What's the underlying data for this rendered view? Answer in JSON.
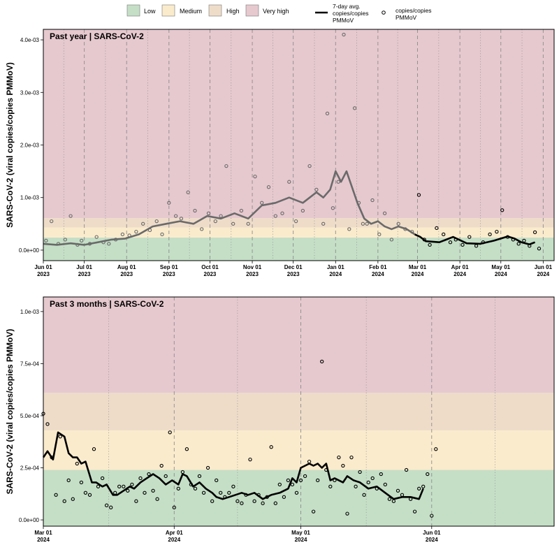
{
  "legend": {
    "levels": [
      {
        "label": "Low",
        "color": "#c5dfc6"
      },
      {
        "label": "Medium",
        "color": "#faebcc"
      },
      {
        "label": "High",
        "color": "#eedcc9"
      },
      {
        "label": "Very high",
        "color": "#e6c9cf"
      }
    ],
    "line_label": [
      "7-day avg.",
      "copies/copies",
      "PMMoV"
    ],
    "point_label": [
      "copies/copies",
      "PMMoV"
    ]
  },
  "chart_data": [
    {
      "type": "line",
      "title": "Past year  |  SARS-CoV-2",
      "ylabel": "SARS-CoV-2 (viral copies/copies PMMoV)",
      "xlabel": "",
      "ylim": [
        -0.0002,
        0.0042
      ],
      "yticks": [
        0,
        0.001,
        0.002,
        0.003,
        0.004
      ],
      "ytick_labels": [
        "0.0e+00",
        "1.0e-03",
        "2.0e-03",
        "3.0e-03",
        "4.0e-03"
      ],
      "xlim": [
        0,
        374
      ],
      "xticks": [
        {
          "day": 0,
          "label": [
            "Jun 01",
            "2023"
          ]
        },
        {
          "day": 30,
          "label": [
            "Jul 01",
            "2023"
          ]
        },
        {
          "day": 61,
          "label": [
            "Aug 01",
            "2023"
          ]
        },
        {
          "day": 92,
          "label": [
            "Sep 01",
            "2023"
          ]
        },
        {
          "day": 122,
          "label": [
            "Oct 01",
            "2023"
          ]
        },
        {
          "day": 153,
          "label": [
            "Nov 01",
            "2023"
          ]
        },
        {
          "day": 183,
          "label": [
            "Dec 01",
            "2023"
          ]
        },
        {
          "day": 214,
          "label": [
            "Jan 01",
            "2024"
          ]
        },
        {
          "day": 245,
          "label": [
            "Feb 01",
            "2024"
          ]
        },
        {
          "day": 274,
          "label": [
            "Mar 01",
            "2024"
          ]
        },
        {
          "day": 305,
          "label": [
            "Apr 01",
            "2024"
          ]
        },
        {
          "day": 335,
          "label": [
            "May 01",
            "2024"
          ]
        },
        {
          "day": 366,
          "label": [
            "Jun 01",
            "2024"
          ]
        }
      ],
      "bands": [
        {
          "level": "Low",
          "from": -0.0002,
          "to": 0.00024
        },
        {
          "level": "Medium",
          "from": 0.00024,
          "to": 0.00043
        },
        {
          "level": "High",
          "from": 0.00043,
          "to": 0.00061
        },
        {
          "level": "Very high",
          "from": 0.00061,
          "to": 0.0042
        }
      ],
      "highlight_from_day": 274,
      "series_avg": {
        "name": "7-day avg. copies/copies PMMoV",
        "x": [
          0,
          10,
          20,
          30,
          40,
          50,
          60,
          70,
          80,
          90,
          100,
          110,
          120,
          130,
          140,
          150,
          160,
          170,
          180,
          190,
          200,
          205,
          210,
          214,
          218,
          222,
          226,
          230,
          235,
          240,
          245,
          250,
          255,
          260,
          266,
          272,
          276,
          280,
          290,
          300,
          310,
          320,
          330,
          340,
          345,
          350,
          356,
          360
        ],
        "y": [
          0.00012,
          0.0001,
          0.00013,
          0.0001,
          0.00015,
          0.0002,
          0.00022,
          0.0003,
          0.00045,
          0.0005,
          0.00055,
          0.0005,
          0.00065,
          0.0006,
          0.0007,
          0.0006,
          0.00085,
          0.0009,
          0.001,
          0.0009,
          0.0011,
          0.001,
          0.00115,
          0.0015,
          0.0013,
          0.0015,
          0.0012,
          0.0009,
          0.0006,
          0.0005,
          0.00055,
          0.00045,
          0.0004,
          0.00045,
          0.0004,
          0.0003,
          0.00025,
          0.00017,
          0.00015,
          0.00025,
          0.00013,
          0.00012,
          0.00018,
          0.00026,
          0.00022,
          0.00015,
          0.00011,
          0.00015
        ]
      },
      "series_points": {
        "name": "copies/copies PMMoV",
        "x": [
          2,
          6,
          11,
          16,
          20,
          25,
          28,
          34,
          39,
          44,
          48,
          53,
          58,
          63,
          68,
          73,
          78,
          83,
          87,
          92,
          97,
          101,
          106,
          111,
          116,
          121,
          126,
          130,
          134,
          139,
          145,
          150,
          155,
          160,
          165,
          170,
          175,
          180,
          185,
          190,
          195,
          200,
          205,
          208,
          212,
          216,
          220,
          224,
          228,
          231,
          234,
          237,
          241,
          246,
          250,
          255,
          260,
          265,
          270,
          275,
          279,
          283,
          288,
          293,
          298,
          302,
          307,
          312,
          317,
          322,
          327,
          332,
          336,
          340,
          344,
          348,
          352,
          356,
          360,
          363
        ],
        "y": [
          0.00018,
          0.00055,
          0.00012,
          0.0002,
          0.00065,
          0.0001,
          0.00018,
          0.00012,
          0.00025,
          0.00015,
          0.00012,
          0.0002,
          0.0003,
          0.00028,
          0.00035,
          0.0005,
          0.00038,
          0.00055,
          0.0003,
          0.0009,
          0.00065,
          0.0006,
          0.0011,
          0.00075,
          0.0004,
          0.0007,
          0.00055,
          0.00065,
          0.0016,
          0.0005,
          0.00075,
          0.0005,
          0.0014,
          0.0009,
          0.0012,
          0.00065,
          0.0007,
          0.0013,
          0.00055,
          0.00075,
          0.0016,
          0.00115,
          0.0005,
          0.0026,
          0.0008,
          0.0013,
          0.0041,
          0.0004,
          0.0027,
          0.0009,
          0.0005,
          0.0005,
          0.00095,
          0.0003,
          0.0007,
          0.0002,
          0.0005,
          0.0004,
          0.00035,
          0.00105,
          0.0002,
          0.0001,
          0.00042,
          0.0003,
          0.00015,
          0.0002,
          0.0001,
          0.00025,
          8e-05,
          0.00015,
          0.0003,
          0.00035,
          0.00076,
          0.00025,
          0.0002,
          0.00012,
          0.00018,
          8e-05,
          0.00034,
          3e-05
        ]
      }
    },
    {
      "type": "line",
      "title": "Past 3 months  |  SARS-CoV-2",
      "ylabel": "SARS-CoV-2 (viral copies/copies PMMoV)",
      "xlabel": "",
      "ylim": [
        -3e-05,
        0.00107
      ],
      "yticks": [
        0,
        0.00025,
        0.0005,
        0.00075,
        0.001
      ],
      "ytick_labels": [
        "0.0e+00",
        "2.5e-04",
        "5.0e-04",
        "7.5e-04",
        "1.0e-03"
      ],
      "xlim": [
        0,
        121
      ],
      "xticks": [
        {
          "day": 0,
          "label": [
            "Mar 01",
            "2024"
          ]
        },
        {
          "day": 31,
          "label": [
            "Apr 01",
            "2024"
          ]
        },
        {
          "day": 61,
          "label": [
            "May 01",
            "2024"
          ]
        },
        {
          "day": 92,
          "label": [
            "Jun 01",
            "2024"
          ]
        }
      ],
      "bands": [
        {
          "level": "Low",
          "from": -3e-05,
          "to": 0.00024
        },
        {
          "level": "Medium",
          "from": 0.00024,
          "to": 0.00043
        },
        {
          "level": "High",
          "from": 0.00043,
          "to": 0.00061
        },
        {
          "level": "Very high",
          "from": 0.00061,
          "to": 0.00107
        }
      ],
      "highlight_from_day": 0,
      "series_avg": {
        "name": "7-day avg. copies/copies PMMoV",
        "x": [
          0,
          1,
          2.3,
          3.5,
          5,
          6,
          7,
          8,
          9,
          10,
          11.5,
          12.5,
          14,
          15,
          16.5,
          17.5,
          19,
          20.5,
          21.5,
          23,
          24.5,
          26,
          27.5,
          29,
          30.5,
          32,
          33,
          34,
          35.5,
          37,
          38.5,
          40,
          41,
          42.5,
          44,
          45.5,
          47,
          48.5,
          50,
          52,
          54,
          56,
          58,
          59,
          60,
          61,
          62,
          63,
          64,
          65,
          66,
          67,
          68,
          69,
          70,
          71,
          72,
          73.5,
          75,
          77,
          79,
          81,
          83,
          85,
          87,
          89,
          90
        ],
        "y": [
          0.0003,
          0.00033,
          0.00029,
          0.00042,
          0.0004,
          0.00032,
          0.0003,
          0.0003,
          0.00027,
          0.00028,
          0.00018,
          0.00018,
          0.00016,
          0.00017,
          0.00012,
          0.00012,
          0.00014,
          0.00016,
          0.00015,
          0.00018,
          0.0002,
          0.00022,
          0.0002,
          0.00017,
          0.00019,
          0.00017,
          0.00022,
          0.00021,
          0.00016,
          0.00018,
          0.00015,
          0.00013,
          0.00011,
          0.0001,
          0.00011,
          0.00012,
          0.00013,
          0.00012,
          0.00013,
          0.0001,
          0.00012,
          0.00013,
          0.00015,
          0.0002,
          0.00018,
          0.00025,
          0.00026,
          0.00027,
          0.00026,
          0.00027,
          0.00025,
          0.00027,
          0.00019,
          0.0002,
          0.00019,
          0.00018,
          0.00021,
          0.00019,
          0.00018,
          0.00015,
          0.00016,
          0.00013,
          0.0001,
          0.00011,
          0.00011,
          0.0001,
          0.00015
        ]
      },
      "series_points": {
        "name": "copies/copies PMMoV",
        "x": [
          0,
          1,
          2,
          3,
          4,
          5,
          6,
          7,
          8,
          9,
          10,
          11,
          12,
          13,
          14,
          15,
          16,
          17,
          18,
          19,
          20,
          21,
          22,
          23,
          24,
          25,
          26,
          27,
          28,
          29,
          30,
          31,
          32,
          33,
          34,
          35,
          36,
          37,
          38,
          39,
          40,
          41,
          42,
          43,
          44,
          45,
          46,
          47,
          48,
          49,
          50,
          51,
          52,
          53,
          54,
          55,
          56,
          57,
          58,
          59,
          60,
          61,
          62,
          63,
          64,
          65,
          66,
          67,
          68,
          69,
          70,
          71,
          72,
          73,
          74,
          75,
          76,
          77,
          78,
          79,
          80,
          81,
          82,
          83,
          84,
          85,
          86,
          87,
          88,
          89,
          90,
          91,
          92,
          93
        ],
        "y": [
          0.00051,
          0.00046,
          0.0003,
          0.00012,
          0.0004,
          9e-05,
          0.00019,
          0.0001,
          0.00027,
          0.00018,
          0.00013,
          0.00012,
          0.00034,
          0.00016,
          0.0002,
          7e-05,
          6e-05,
          0.00013,
          0.00016,
          0.00016,
          0.00014,
          0.00017,
          9e-05,
          0.0002,
          0.00013,
          0.00022,
          0.00014,
          0.0001,
          0.00026,
          0.00021,
          0.00042,
          6e-05,
          0.00015,
          0.00023,
          0.00034,
          0.00017,
          0.00015,
          0.00021,
          0.00013,
          0.00025,
          9e-05,
          0.00019,
          0.00013,
          0.00011,
          0.00013,
          0.00016,
          9e-05,
          8e-05,
          0.00012,
          0.00029,
          9e-05,
          0.00012,
          8e-05,
          0.00011,
          0.00035,
          8e-05,
          0.00017,
          0.00011,
          0.00019,
          0.00017,
          0.00013,
          0.00019,
          0.00021,
          0.00028,
          4e-05,
          0.00019,
          0.00076,
          0.00024,
          0.00016,
          0.00019,
          0.0003,
          0.00026,
          3e-05,
          0.0003,
          0.00016,
          0.00023,
          0.00012,
          0.00018,
          0.0002,
          0.00015,
          0.00022,
          0.00017,
          0.0001,
          9e-05,
          0.00014,
          0.00012,
          0.00024,
          0.0001,
          4e-05,
          0.00015,
          0.00016,
          0.00022,
          2e-05,
          0.00034
        ]
      }
    }
  ]
}
